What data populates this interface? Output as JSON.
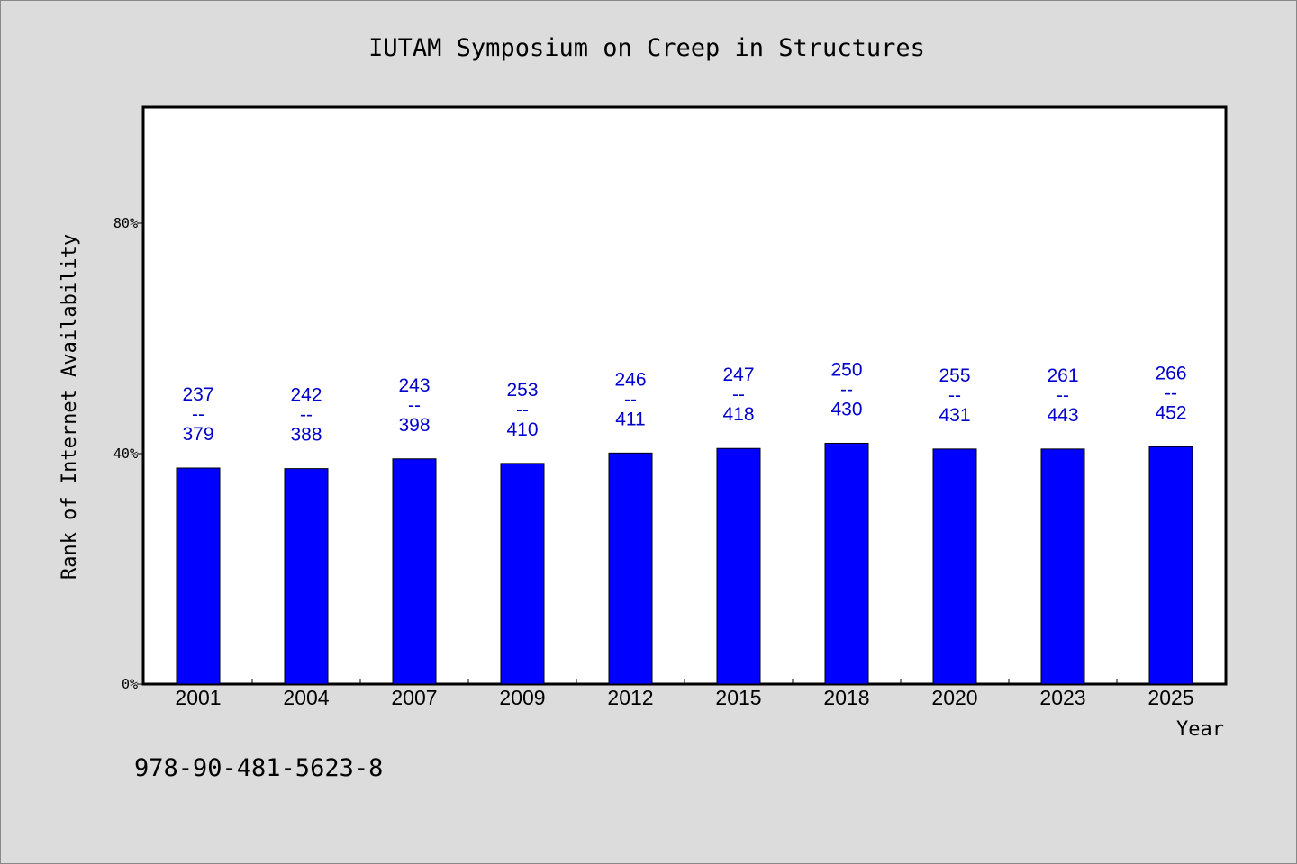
{
  "chart_data": {
    "type": "bar",
    "title": "IUTAM Symposium on Creep in Structures",
    "xlabel": "Year",
    "ylabel": "Rank of Internet Availability",
    "categories": [
      "2001",
      "2004",
      "2007",
      "2009",
      "2012",
      "2015",
      "2018",
      "2020",
      "2023",
      "2025"
    ],
    "values": [
      37.5,
      37.4,
      39.1,
      38.3,
      40.1,
      40.9,
      41.8,
      40.8,
      40.8,
      41.2
    ],
    "ranks": [
      237,
      242,
      243,
      253,
      246,
      247,
      250,
      255,
      261,
      266
    ],
    "totals": [
      379,
      388,
      398,
      410,
      411,
      418,
      430,
      431,
      443,
      452
    ],
    "label_separator": "--",
    "ylim": [
      0,
      100
    ],
    "yticks": [
      0,
      40,
      80
    ],
    "ytick_labels": [
      "0%",
      "40%",
      "80%"
    ],
    "bar_color": "#0000ff",
    "label_color": "#0000cc",
    "grid": false,
    "legend": "none"
  },
  "footer": {
    "isbn": "978-90-481-5623-8"
  }
}
